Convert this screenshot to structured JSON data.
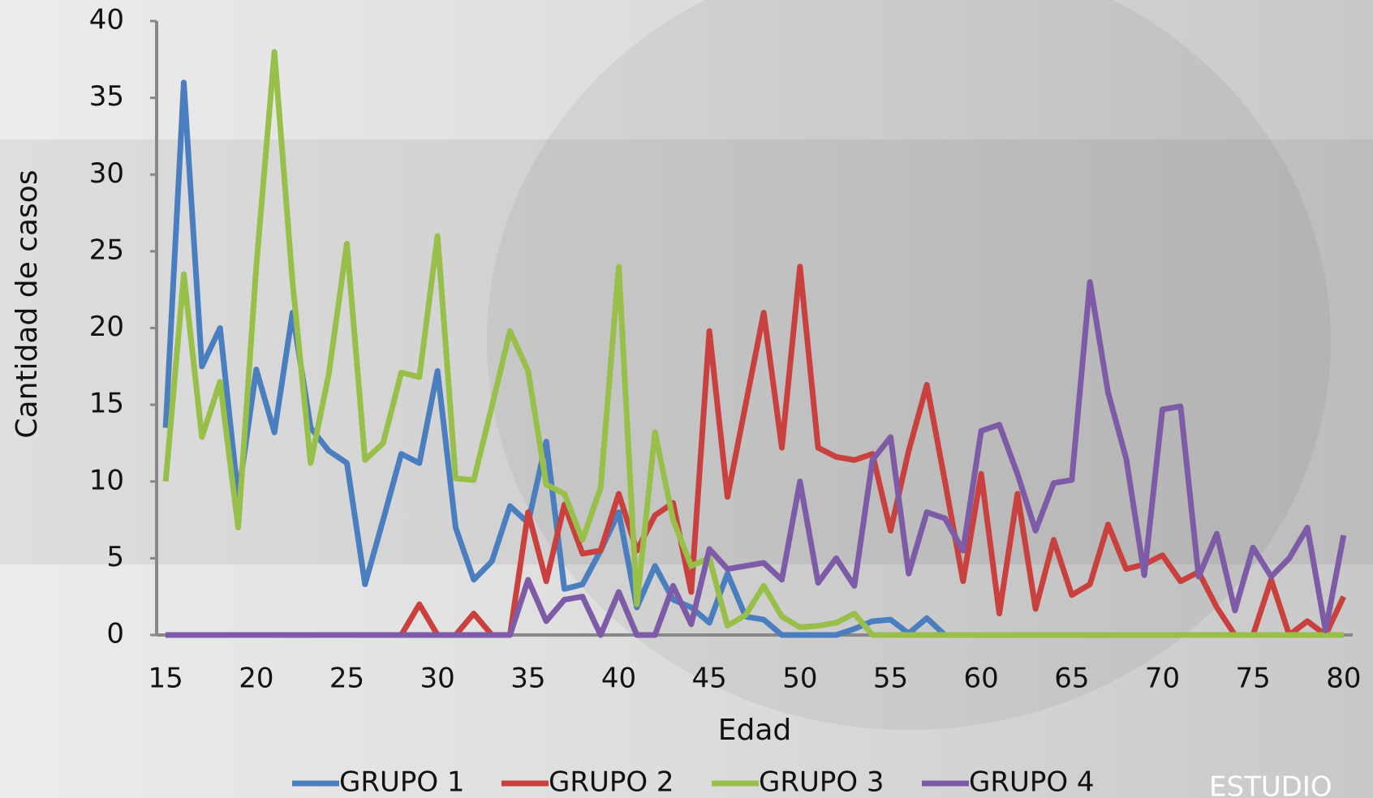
{
  "chart_data": {
    "type": "line",
    "xlabel": "Edad",
    "ylabel": "Cantidad de casos",
    "watermark": "ESTUDIO",
    "x": [
      15,
      16,
      17,
      18,
      19,
      20,
      21,
      22,
      23,
      24,
      25,
      26,
      27,
      28,
      29,
      30,
      31,
      32,
      33,
      34,
      35,
      36,
      37,
      38,
      39,
      40,
      41,
      42,
      43,
      44,
      45,
      46,
      47,
      48,
      49,
      50,
      51,
      52,
      53,
      54,
      55,
      56,
      57,
      58,
      59,
      60,
      61,
      62,
      63,
      64,
      65,
      66,
      67,
      68,
      69,
      70,
      71,
      72,
      73,
      74,
      75,
      76,
      77,
      78,
      79,
      80
    ],
    "series": [
      {
        "name": "GRUPO 1",
        "color": "#4a7ebf",
        "values": [
          13.5,
          36,
          17.5,
          20,
          9,
          17.3,
          13.2,
          21,
          13.5,
          12,
          11.2,
          3.3,
          7.5,
          11.8,
          11.2,
          17.2,
          7,
          3.6,
          4.8,
          8.4,
          7.3,
          12.6,
          3,
          3.3,
          5.5,
          8,
          1.8,
          4.5,
          2.3,
          1.8,
          0.8,
          4,
          1.2,
          1,
          0,
          0,
          0,
          0,
          0.4,
          0.9,
          1,
          0.1,
          1.1,
          0,
          0,
          0,
          0,
          0,
          0,
          0,
          0,
          0,
          0,
          0,
          0,
          0,
          0,
          0,
          0,
          0,
          0,
          0,
          0,
          0,
          0,
          0
        ]
      },
      {
        "name": "GRUPO 2",
        "color": "#c9413e",
        "values": [
          0,
          0,
          0,
          0,
          0,
          0,
          0,
          0,
          0,
          0,
          0,
          0,
          0,
          0,
          2,
          0,
          0,
          1.4,
          0,
          0,
          8,
          3.5,
          8.5,
          5.3,
          5.5,
          9.2,
          5.5,
          7.8,
          8.6,
          2.8,
          19.8,
          9,
          15,
          21,
          12.2,
          24,
          12.2,
          11.6,
          11.4,
          11.8,
          6.8,
          12,
          16.3,
          10,
          3.5,
          10.5,
          1.4,
          9.2,
          1.7,
          6.2,
          2.6,
          3.3,
          7.2,
          4.3,
          4.6,
          5.2,
          3.5,
          4.1,
          1.8,
          0,
          0,
          3.6,
          0,
          0.9,
          0,
          2.5
        ]
      },
      {
        "name": "GRUPO 3",
        "color": "#98bf4a",
        "values": [
          10,
          23.5,
          12.9,
          16.5,
          7,
          24,
          38,
          23,
          11.2,
          17,
          25.5,
          11.4,
          12.5,
          17.1,
          16.8,
          26,
          10.2,
          10.1,
          14.9,
          19.8,
          17.2,
          9.8,
          9.2,
          6.2,
          9.6,
          24,
          2,
          13.2,
          7.5,
          4.5,
          5,
          0.6,
          1.3,
          3.2,
          1.2,
          0.5,
          0.6,
          0.8,
          1.4,
          0,
          0,
          0,
          0,
          0,
          0,
          0,
          0,
          0,
          0,
          0,
          0,
          0,
          0,
          0,
          0,
          0,
          0,
          0,
          0,
          0,
          0,
          0,
          0,
          0,
          0,
          0
        ]
      },
      {
        "name": "GRUPO 4",
        "color": "#7d5ba6",
        "values": [
          0,
          0,
          0,
          0,
          0,
          0,
          0,
          0,
          0,
          0,
          0,
          0,
          0,
          0,
          0,
          0,
          0,
          0,
          0,
          0,
          3.6,
          0.9,
          2.3,
          2.5,
          0,
          2.8,
          0,
          0,
          3.2,
          0.7,
          5.6,
          4.3,
          4.5,
          4.7,
          3.6,
          10,
          3.4,
          5,
          3.2,
          11.4,
          12.9,
          4,
          8,
          7.6,
          5.5,
          13.3,
          13.7,
          10.5,
          6.8,
          9.9,
          10.1,
          23,
          15.8,
          11.5,
          3.9,
          14.7,
          14.9,
          3.8,
          6.6,
          1.6,
          5.7,
          3.8,
          5,
          7,
          0.3,
          6.5
        ]
      }
    ],
    "xlim": [
      14.5,
      80.5
    ],
    "xticks": [
      15,
      20,
      25,
      30,
      35,
      40,
      45,
      50,
      55,
      60,
      65,
      70,
      75,
      80
    ],
    "ylim": [
      0,
      40
    ],
    "yticks": [
      0,
      5,
      10,
      15,
      20,
      25,
      30,
      35,
      40
    ],
    "legend": "bottom"
  }
}
